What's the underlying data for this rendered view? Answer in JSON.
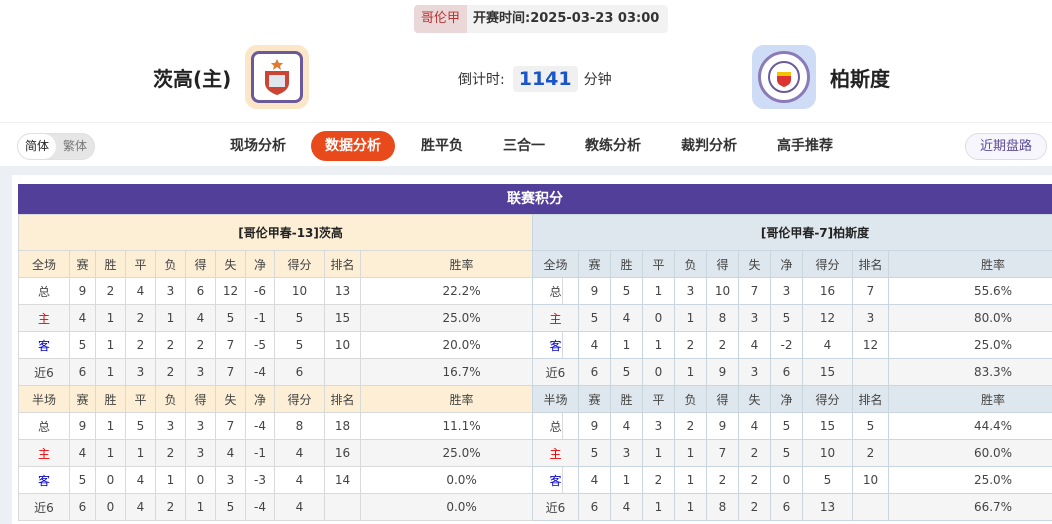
{
  "match": {
    "league": "哥伦甲",
    "start_label": "开赛时间:",
    "start_time": "2025-03-23 03:00"
  },
  "home": {
    "name": "茨高(主)"
  },
  "away": {
    "name": "柏斯度"
  },
  "countdown": {
    "label": "倒计时:",
    "value": "1141",
    "unit": "分钟"
  },
  "lang": {
    "simplified": "简体",
    "traditional": "繁体"
  },
  "tabs": [
    "现场分析",
    "数据分析",
    "胜平负",
    "三合一",
    "教练分析",
    "裁判分析",
    "高手推荐"
  ],
  "active_tab": "数据分析",
  "recent_button": "近期盘路",
  "colors": {
    "accent": "#e84a1c",
    "title_bar": "#523f9a",
    "home_row_red": "#e00000",
    "away_row_blue": "#0000cc"
  },
  "standings": {
    "title": "联赛积分",
    "left": {
      "team_label": "[哥伦甲春-13]茨高",
      "full_headers": [
        "全场",
        "赛",
        "胜",
        "平",
        "负",
        "得",
        "失",
        "净",
        "得分",
        "排名",
        "胜率"
      ],
      "full_rows": [
        [
          "总",
          "9",
          "2",
          "4",
          "3",
          "6",
          "12",
          "-6",
          "10",
          "13",
          "22.2%"
        ],
        [
          "主",
          "4",
          "1",
          "2",
          "1",
          "4",
          "5",
          "-1",
          "5",
          "15",
          "25.0%"
        ],
        [
          "客",
          "5",
          "1",
          "2",
          "2",
          "2",
          "7",
          "-5",
          "5",
          "10",
          "20.0%"
        ],
        [
          "近6",
          "6",
          "1",
          "3",
          "2",
          "3",
          "7",
          "-4",
          "6",
          "",
          "16.7%"
        ]
      ],
      "half_headers": [
        "半场",
        "赛",
        "胜",
        "平",
        "负",
        "得",
        "失",
        "净",
        "得分",
        "排名",
        "胜率"
      ],
      "half_rows": [
        [
          "总",
          "9",
          "1",
          "5",
          "3",
          "3",
          "7",
          "-4",
          "8",
          "18",
          "11.1%"
        ],
        [
          "主",
          "4",
          "1",
          "1",
          "2",
          "3",
          "4",
          "-1",
          "4",
          "16",
          "25.0%"
        ],
        [
          "客",
          "5",
          "0",
          "4",
          "1",
          "0",
          "3",
          "-3",
          "4",
          "14",
          "0.0%"
        ],
        [
          "近6",
          "6",
          "0",
          "4",
          "2",
          "1",
          "5",
          "-4",
          "4",
          "",
          "0.0%"
        ]
      ]
    },
    "right": {
      "team_label": "[哥伦甲春-7]柏斯度",
      "full_headers": [
        "全场",
        "赛",
        "胜",
        "平",
        "负",
        "得",
        "失",
        "净",
        "得分",
        "排名",
        "胜率"
      ],
      "full_rows": [
        [
          "总",
          "9",
          "5",
          "1",
          "3",
          "10",
          "7",
          "3",
          "16",
          "7",
          "55.6%"
        ],
        [
          "主",
          "5",
          "4",
          "0",
          "1",
          "8",
          "3",
          "5",
          "12",
          "3",
          "80.0%"
        ],
        [
          "客",
          "4",
          "1",
          "1",
          "2",
          "2",
          "4",
          "-2",
          "4",
          "12",
          "25.0%"
        ],
        [
          "近6",
          "6",
          "5",
          "0",
          "1",
          "9",
          "3",
          "6",
          "15",
          "",
          "83.3%"
        ]
      ],
      "half_headers": [
        "半场",
        "赛",
        "胜",
        "平",
        "负",
        "得",
        "失",
        "净",
        "得分",
        "排名",
        "胜率"
      ],
      "half_rows": [
        [
          "总",
          "9",
          "4",
          "3",
          "2",
          "9",
          "4",
          "5",
          "15",
          "5",
          "44.4%"
        ],
        [
          "主",
          "5",
          "3",
          "1",
          "1",
          "7",
          "2",
          "5",
          "10",
          "2",
          "60.0%"
        ],
        [
          "客",
          "4",
          "1",
          "2",
          "1",
          "2",
          "2",
          "0",
          "5",
          "10",
          "25.0%"
        ],
        [
          "近6",
          "6",
          "4",
          "1",
          "1",
          "8",
          "2",
          "6",
          "13",
          "",
          "66.7%"
        ]
      ]
    }
  }
}
